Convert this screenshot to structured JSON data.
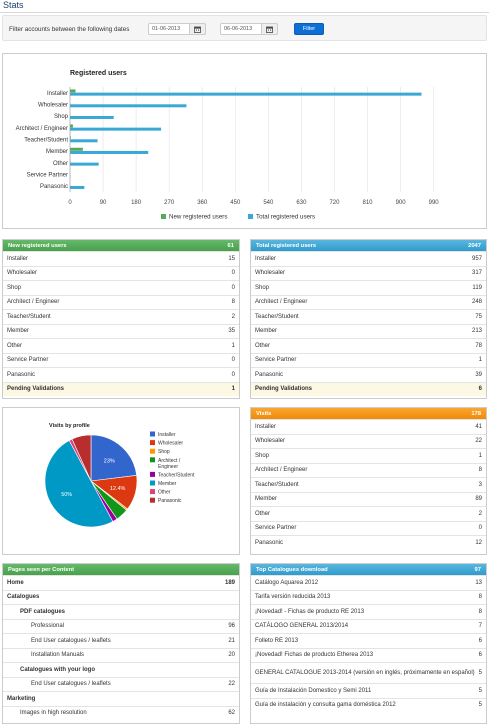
{
  "page": {
    "title": "Stats"
  },
  "filter": {
    "label": "Filter accounts between the following dates",
    "date_from": "01-06-2013",
    "date_to": "06-06-2013",
    "button": "Filter"
  },
  "colors": {
    "green": "#57a957",
    "blue": "#3aa8d6",
    "orange": "#f5950f",
    "title": "#1a3d6b"
  },
  "chart_data": [
    {
      "type": "bar",
      "orientation": "horizontal",
      "title": "Registered users",
      "categories": [
        "Installer",
        "Wholesaler",
        "Shop",
        "Architect / Engineer",
        "Teacher/Student",
        "Member",
        "Other",
        "Service Partner",
        "Panasonic"
      ],
      "series": [
        {
          "name": "New registered users",
          "color": "#57a957",
          "values": [
            15,
            0,
            0,
            8,
            2,
            35,
            1,
            0,
            0
          ]
        },
        {
          "name": "Total registered users",
          "color": "#3aa8d6",
          "values": [
            957,
            317,
            119,
            248,
            75,
            213,
            78,
            1,
            39
          ]
        }
      ],
      "xticks": [
        "0",
        "90",
        "180",
        "270",
        "360",
        "450",
        "540",
        "630",
        "720",
        "810",
        "900",
        "990"
      ],
      "xlim": [
        0,
        1040
      ],
      "grid": true,
      "legend": "bottom"
    },
    {
      "type": "pie",
      "title": "Visits by profile",
      "labels": [
        "Installer",
        "Wholesaler",
        "Shop",
        "Architect / Engineer",
        "Teacher/Student",
        "Member",
        "Other",
        "Panasonic"
      ],
      "values": [
        41,
        22,
        1,
        8,
        3,
        89,
        2,
        12
      ],
      "colors": [
        "#3366cc",
        "#dc3912",
        "#ff9900",
        "#109618",
        "#990099",
        "#0099c6",
        "#dd4477",
        "#b82e2e"
      ],
      "slice_labels": [
        "23%",
        "12.4%",
        "",
        "",
        "",
        "50%",
        "",
        ""
      ],
      "legend": "right"
    }
  ],
  "new_users": {
    "title": "New registered users",
    "total": "61",
    "rows": [
      {
        "label": "Installer",
        "value": "15"
      },
      {
        "label": "Wholesaler",
        "value": "0"
      },
      {
        "label": "Shop",
        "value": "0"
      },
      {
        "label": "Architect / Engineer",
        "value": "8"
      },
      {
        "label": "Teacher/Student",
        "value": "2"
      },
      {
        "label": "Member",
        "value": "35"
      },
      {
        "label": "Other",
        "value": "1"
      },
      {
        "label": "Service Partner",
        "value": "0"
      },
      {
        "label": "Panasonic",
        "value": "0"
      }
    ],
    "pending_label": "Pending Validations",
    "pending_value": "1"
  },
  "total_users": {
    "title": "Total registered users",
    "total": "2047",
    "rows": [
      {
        "label": "Installer",
        "value": "957"
      },
      {
        "label": "Wholesaler",
        "value": "317"
      },
      {
        "label": "Shop",
        "value": "119"
      },
      {
        "label": "Architect / Engineer",
        "value": "248"
      },
      {
        "label": "Teacher/Student",
        "value": "75"
      },
      {
        "label": "Member",
        "value": "213"
      },
      {
        "label": "Other",
        "value": "78"
      },
      {
        "label": "Service Partner",
        "value": "1"
      },
      {
        "label": "Panasonic",
        "value": "39"
      }
    ],
    "pending_label": "Pending Validations",
    "pending_value": "6"
  },
  "visits": {
    "title": "Visits",
    "total": "178",
    "rows": [
      {
        "label": "Installer",
        "value": "41"
      },
      {
        "label": "Wholesaler",
        "value": "22"
      },
      {
        "label": "Shop",
        "value": "1"
      },
      {
        "label": "Architect / Engineer",
        "value": "8"
      },
      {
        "label": "Teacher/Student",
        "value": "3"
      },
      {
        "label": "Member",
        "value": "89"
      },
      {
        "label": "Other",
        "value": "2"
      },
      {
        "label": "Service Partner",
        "value": "0"
      },
      {
        "label": "Panasonic",
        "value": "12"
      }
    ]
  },
  "pages_seen": {
    "title": "Pages seen per Content",
    "rows": [
      {
        "label": "Home",
        "value": "189",
        "level": 0,
        "bold": true
      },
      {
        "label": "Catalogues",
        "value": "",
        "level": 0,
        "bold": true
      },
      {
        "label": "PDF catalogues",
        "value": "",
        "level": 1,
        "bold": true
      },
      {
        "label": "Professional",
        "value": "96",
        "level": 2,
        "bold": false
      },
      {
        "label": "End User catalogues / leaflets",
        "value": "21",
        "level": 2,
        "bold": false
      },
      {
        "label": "Installation Manuals",
        "value": "20",
        "level": 2,
        "bold": false
      },
      {
        "label": "Catalogues with your logo",
        "value": "",
        "level": 1,
        "bold": true
      },
      {
        "label": "End User catalogues / leaflets",
        "value": "22",
        "level": 2,
        "bold": false
      },
      {
        "label": "Marketing",
        "value": "",
        "level": 0,
        "bold": true
      },
      {
        "label": "Images in high resolution",
        "value": "62",
        "level": 1,
        "bold": false
      }
    ]
  },
  "top_catalogues": {
    "title": "Top Catalogues download",
    "total": "97",
    "rows": [
      {
        "label": "Catálogo Aquarea 2012",
        "value": "13"
      },
      {
        "label": "Tarifa versión reducida 2013",
        "value": "8"
      },
      {
        "label": "¡Novedad! - Fichas de producto RE 2013",
        "value": "8"
      },
      {
        "label": "CATÁLOGO GENERAL 2013/2014",
        "value": "7"
      },
      {
        "label": "Folleto RE 2013",
        "value": "6"
      },
      {
        "label": "¡Novedad! Fichas de producto Etherea 2013",
        "value": "6"
      },
      {
        "label": "GENERAL CATALOGUE 2013-2014 (versión en inglés, próximamente en español)",
        "value": "5"
      },
      {
        "label": "Guía de Instalación Domestico y Semi 2011",
        "value": "5"
      },
      {
        "label": "Guía de instalación y consulta gama doméstica 2012",
        "value": "5"
      }
    ]
  }
}
